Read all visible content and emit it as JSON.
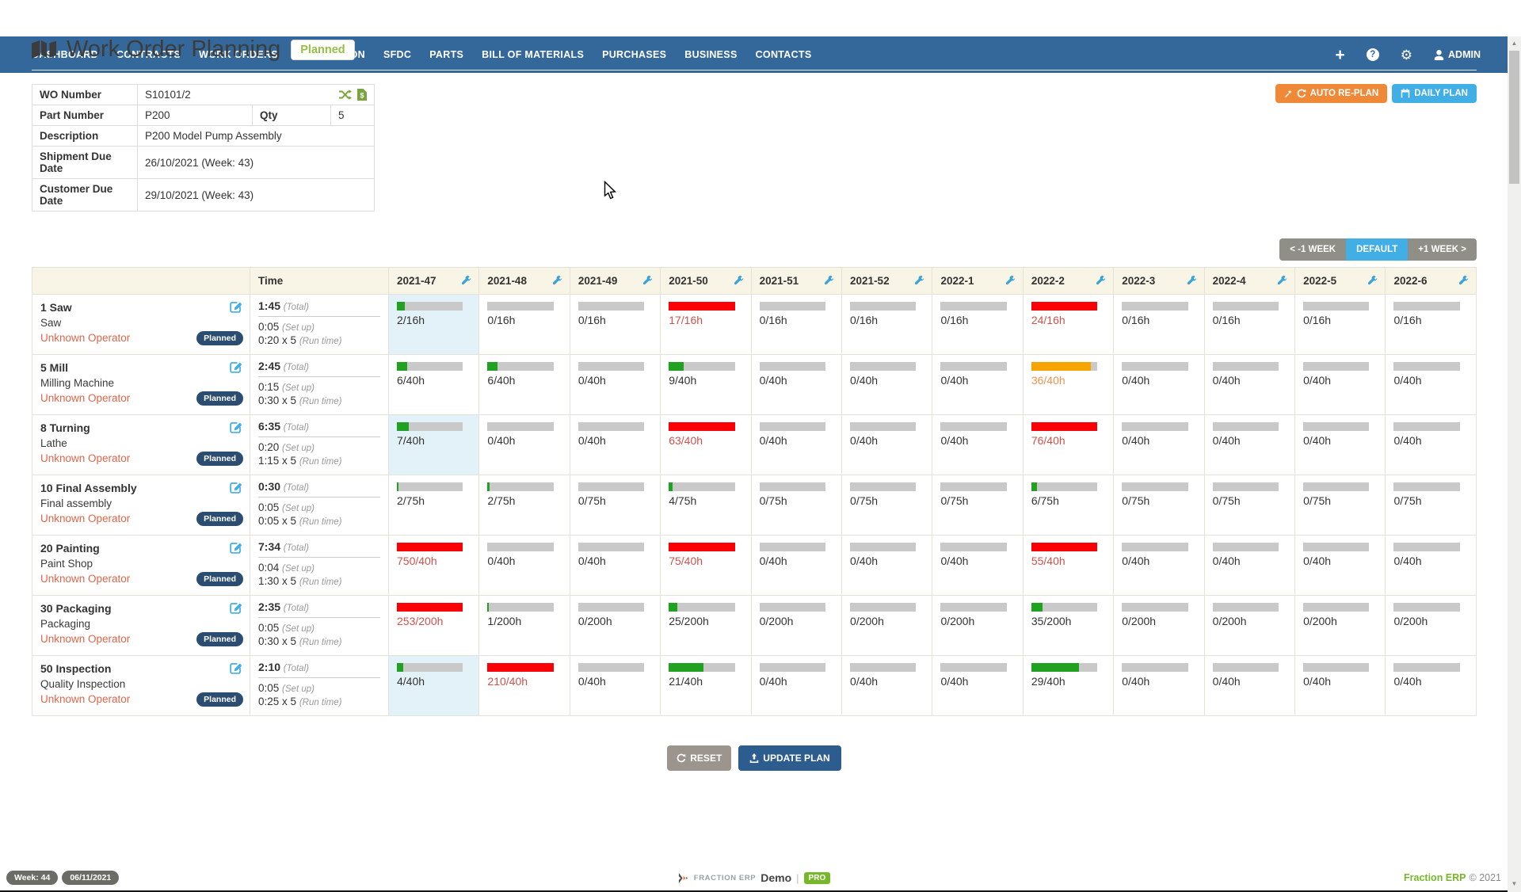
{
  "navbar": {
    "items": [
      "DASHBOARD",
      "CONTRACTS",
      "WORK ORDERS",
      "PRODUCTION",
      "SFDC",
      "PARTS",
      "BILL OF MATERIALS",
      "PURCHASES",
      "BUSINESS",
      "CONTACTS"
    ],
    "user_label": "ADMIN"
  },
  "page": {
    "title": "Work Order Planning",
    "status_badge": "Planned"
  },
  "wo_details": {
    "wo_number_label": "WO Number",
    "wo_number": "S10101/2",
    "part_number_label": "Part Number",
    "part_number": "P200",
    "qty_label": "Qty",
    "qty": "5",
    "description_label": "Description",
    "description": "P200 Model Pump Assembly",
    "shipment_label": "Shipment Due Date",
    "shipment": "26/10/2021 (Week: 43)",
    "customer_label": "Customer Due Date",
    "customer": "29/10/2021 (Week: 43)"
  },
  "toolbar": {
    "auto_replan": "AUTO RE-PLAN",
    "daily_plan": "DAILY PLAN"
  },
  "week_nav": {
    "prev": "< -1 WEEK",
    "default": "DEFAULT",
    "next": "+1 WEEK >"
  },
  "planner": {
    "time_header": "Time",
    "weeks": [
      "2021-47",
      "2021-48",
      "2021-49",
      "2021-50",
      "2021-51",
      "2021-52",
      "2022-1",
      "2022-2",
      "2022-3",
      "2022-4",
      "2022-5",
      "2022-6"
    ],
    "labels": {
      "total": "(Total)",
      "setup": "(Set up)",
      "run": "(Run time)"
    },
    "rows": [
      {
        "op": "1 Saw",
        "machine": "Saw",
        "operator": "Unknown Operator",
        "status": "Planned",
        "total": "1:45",
        "setup": "0:05",
        "run": "0:20 x 5",
        "capacity": 16,
        "loads": [
          2,
          0,
          0,
          17,
          0,
          0,
          0,
          24,
          0,
          0,
          0,
          0
        ],
        "highlight_col": 0
      },
      {
        "op": "5 Mill",
        "machine": "Milling Machine",
        "operator": "Unknown Operator",
        "status": "Planned",
        "total": "2:45",
        "setup": "0:15",
        "run": "0:30 x 5",
        "capacity": 40,
        "loads": [
          6,
          6,
          0,
          9,
          0,
          0,
          0,
          36,
          0,
          0,
          0,
          0
        ],
        "highlight_col": null
      },
      {
        "op": "8 Turning",
        "machine": "Lathe",
        "operator": "Unknown Operator",
        "status": "Planned",
        "total": "6:35",
        "setup": "0:20",
        "run": "1:15 x 5",
        "capacity": 40,
        "loads": [
          7,
          0,
          0,
          63,
          0,
          0,
          0,
          76,
          0,
          0,
          0,
          0
        ],
        "highlight_col": 0
      },
      {
        "op": "10 Final Assembly",
        "machine": "Final assembly",
        "operator": "Unknown Operator",
        "status": "Planned",
        "total": "0:30",
        "setup": "0:05",
        "run": "0:05 x 5",
        "capacity": 75,
        "loads": [
          2,
          2,
          0,
          4,
          0,
          0,
          0,
          6,
          0,
          0,
          0,
          0
        ],
        "highlight_col": null
      },
      {
        "op": "20 Painting",
        "machine": "Paint Shop",
        "operator": "Unknown Operator",
        "status": "Planned",
        "total": "7:34",
        "setup": "0:04",
        "run": "1:30 x 5",
        "capacity": 40,
        "loads": [
          750,
          0,
          0,
          75,
          0,
          0,
          0,
          55,
          0,
          0,
          0,
          0
        ],
        "highlight_col": null
      },
      {
        "op": "30 Packaging",
        "machine": "Packaging",
        "operator": "Unknown Operator",
        "status": "Planned",
        "total": "2:35",
        "setup": "0:05",
        "run": "0:30 x 5",
        "capacity": 200,
        "loads": [
          253,
          1,
          0,
          25,
          0,
          0,
          0,
          35,
          0,
          0,
          0,
          0
        ],
        "highlight_col": null
      },
      {
        "op": "50 Inspection",
        "machine": "Quality Inspection",
        "operator": "Unknown Operator",
        "status": "Planned",
        "total": "2:10",
        "setup": "0:05",
        "run": "0:25 x 5",
        "capacity": 40,
        "loads": [
          4,
          210,
          0,
          21,
          0,
          0,
          0,
          29,
          0,
          0,
          0,
          0
        ],
        "highlight_col": 0
      }
    ]
  },
  "actions": {
    "reset": "RESET",
    "update": "UPDATE PLAN"
  },
  "footer": {
    "week_badge": "Week: 44",
    "date_badge": "06/11/2021",
    "brand_small": "FRACTION ERP",
    "brand_demo": "Demo",
    "brand_pro": "PRO",
    "copyright_brand": "Fraction ERP",
    "copyright": "© 2021"
  },
  "icons": {
    "navbar": [
      "plus-icon",
      "help-icon",
      "gear-icon",
      "user-icon"
    ],
    "title": "map-icon",
    "wo_number": [
      "shuffle-icon",
      "invoice-icon"
    ],
    "week_header": "wrench-icon",
    "operation_row": "edit-icon",
    "auto_replan": [
      "wand-icon",
      "refresh-icon"
    ],
    "daily_plan": "calendar-icon",
    "reset": "refresh-icon",
    "update": "upload-icon",
    "footer": "fraction-logo-icon",
    "gear_glyph": "⚙",
    "plus_glyph": "+",
    "help_glyph": "?"
  },
  "colors": {
    "navbar": "#35689a",
    "accent_blue": "#41aee6",
    "accent_orange": "#ef8937",
    "bar_green": "#21a121",
    "bar_red": "#fb0007",
    "bar_orange": "#f7a400",
    "bar_track": "#c9c9c9",
    "over_text": "#d05149",
    "near_text": "#ef9350",
    "badge_navy": "#2b4d72",
    "operator_link": "#e0654a",
    "header_bg": "#f8f4e6",
    "highlight_bg": "#e3f1f8",
    "brand_green": "#76b82a",
    "wrench_blue": "#3aa4d8",
    "icon_green": "#7aa43c"
  }
}
